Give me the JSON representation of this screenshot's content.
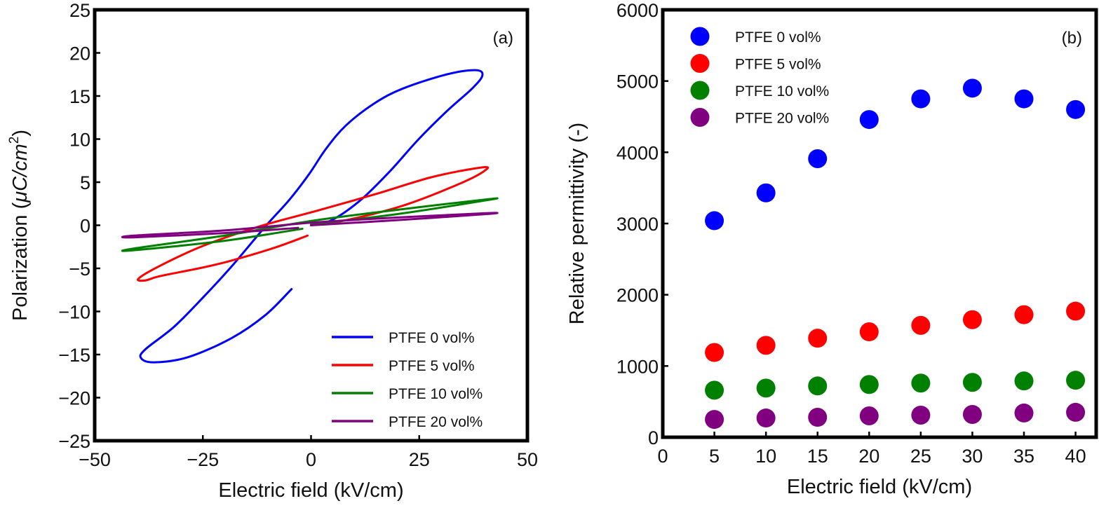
{
  "chart_data": [
    {
      "type": "line",
      "panel_label": "(a)",
      "xlabel": "Electric field (kV/cm)",
      "ylabel_text": "Polarization (",
      "ylabel_unit_main": "μC/cm",
      "ylabel_unit_sup": "2",
      "ylabel_close": ")",
      "xlim": [
        -50,
        50
      ],
      "ylim": [
        -25,
        25
      ],
      "xticks": [
        -50,
        -25,
        0,
        25,
        50
      ],
      "xtick_labels": [
        "−50",
        "−25",
        "0",
        "25",
        "50"
      ],
      "yticks": [
        25,
        20,
        15,
        10,
        5,
        0,
        -5,
        -10,
        -15,
        -20,
        -25
      ],
      "ytick_labels": [
        "25",
        "20",
        "15",
        "10",
        "5",
        "0",
        "−5",
        "−10",
        "−15",
        "−20",
        "−25"
      ],
      "grid": false,
      "legend_position": "bottom-right",
      "series": [
        {
          "name": "PTFE 0 vol%",
          "color": "#0000ff",
          "points": [
            [
              0,
              0
            ],
            [
              4.8,
              0.6
            ],
            [
              11.4,
              2.9
            ],
            [
              18.1,
              6.2
            ],
            [
              24.7,
              9.9
            ],
            [
              31.3,
              13.2
            ],
            [
              37.3,
              15.9
            ],
            [
              39.6,
              17.4
            ],
            [
              38,
              18
            ],
            [
              31.3,
              17.5
            ],
            [
              21.4,
              15.9
            ],
            [
              14.8,
              14.2
            ],
            [
              8.1,
              11.6
            ],
            [
              3.5,
              8.9
            ],
            [
              -0.5,
              5.9
            ],
            [
              -5.1,
              2.9
            ],
            [
              -10.5,
              -0.1
            ],
            [
              -18.4,
              -4.8
            ],
            [
              -25,
              -8.4
            ],
            [
              -31.7,
              -11.8
            ],
            [
              -38.3,
              -14.4
            ],
            [
              -39.3,
              -15.4
            ],
            [
              -36.3,
              -15.9
            ],
            [
              -28.4,
              -15.3
            ],
            [
              -18.4,
              -13.1
            ],
            [
              -10.5,
              -10.4
            ],
            [
              -4.5,
              -7.4
            ]
          ]
        },
        {
          "name": "PTFE 5 vol%",
          "color": "#ff0000",
          "points": [
            [
              0,
              0
            ],
            [
              8.2,
              0.6
            ],
            [
              21.4,
              2.3
            ],
            [
              34.7,
              4.9
            ],
            [
              40.3,
              6.4
            ],
            [
              39.3,
              6.7
            ],
            [
              28,
              5.6
            ],
            [
              14.8,
              3.6
            ],
            [
              1.5,
              1.7
            ],
            [
              -11.7,
              -0.1
            ],
            [
              -25,
              -2.4
            ],
            [
              -34.9,
              -4.7
            ],
            [
              -39.9,
              -6.2
            ],
            [
              -38.3,
              -6.4
            ],
            [
              -34.9,
              -5.9
            ],
            [
              -25,
              -4.9
            ],
            [
              -18.4,
              -4.1
            ],
            [
              -8.4,
              -2.6
            ],
            [
              -0.8,
              -1.2
            ]
          ]
        },
        {
          "name": "PTFE 10 vol%",
          "color": "#008000",
          "points": [
            [
              0,
              0.1
            ],
            [
              20,
              1.3
            ],
            [
              40.5,
              2.9
            ],
            [
              40.5,
              3.0
            ],
            [
              20,
              1.8
            ],
            [
              0,
              0.5
            ],
            [
              -20,
              -1.2
            ],
            [
              -41,
              -2.7
            ],
            [
              -41,
              -2.9
            ],
            [
              -20,
              -1.8
            ],
            [
              -2,
              -0.4
            ]
          ]
        },
        {
          "name": "PTFE 20 vol%",
          "color": "#800080",
          "points": [
            [
              0,
              0
            ],
            [
              20,
              0.6
            ],
            [
              40.5,
              1.3
            ],
            [
              40.5,
              1.4
            ],
            [
              20,
              0.9
            ],
            [
              0,
              0.3
            ],
            [
              -20,
              -0.6
            ],
            [
              -41,
              -1.2
            ],
            [
              -41,
              -1.4
            ],
            [
              -20,
              -0.9
            ],
            [
              -3,
              -0.3
            ]
          ]
        }
      ]
    },
    {
      "type": "scatter",
      "panel_label": "(b)",
      "xlabel": "Electric field (kV/cm)",
      "ylabel": "Relative permittivity (-)",
      "xlim": [
        0,
        42
      ],
      "ylim": [
        0,
        6000
      ],
      "xticks": [
        0,
        5,
        10,
        15,
        20,
        25,
        30,
        35,
        40
      ],
      "xtick_labels": [
        "0",
        "5",
        "10",
        "15",
        "20",
        "25",
        "30",
        "35",
        "40"
      ],
      "yticks": [
        0,
        1000,
        2000,
        3000,
        4000,
        5000,
        6000
      ],
      "ytick_labels": [
        "0",
        "1000",
        "2000",
        "3000",
        "4000",
        "5000",
        "6000"
      ],
      "grid": false,
      "legend_position": "top-left",
      "x": [
        5,
        10,
        15,
        20,
        25,
        30,
        35,
        40
      ],
      "series": [
        {
          "name": "PTFE 0 vol%",
          "color": "#0000ff",
          "values": [
            3040,
            3430,
            3910,
            4460,
            4750,
            4900,
            4750,
            4600
          ]
        },
        {
          "name": "PTFE 5 vol%",
          "color": "#ff0000",
          "values": [
            1190,
            1290,
            1390,
            1480,
            1570,
            1650,
            1720,
            1770
          ]
        },
        {
          "name": "PTFE 10 vol%",
          "color": "#008000",
          "values": [
            660,
            690,
            720,
            740,
            760,
            770,
            790,
            800
          ]
        },
        {
          "name": "PTFE 20 vol%",
          "color": "#800080",
          "values": [
            250,
            270,
            280,
            300,
            310,
            320,
            340,
            350
          ]
        }
      ]
    }
  ]
}
